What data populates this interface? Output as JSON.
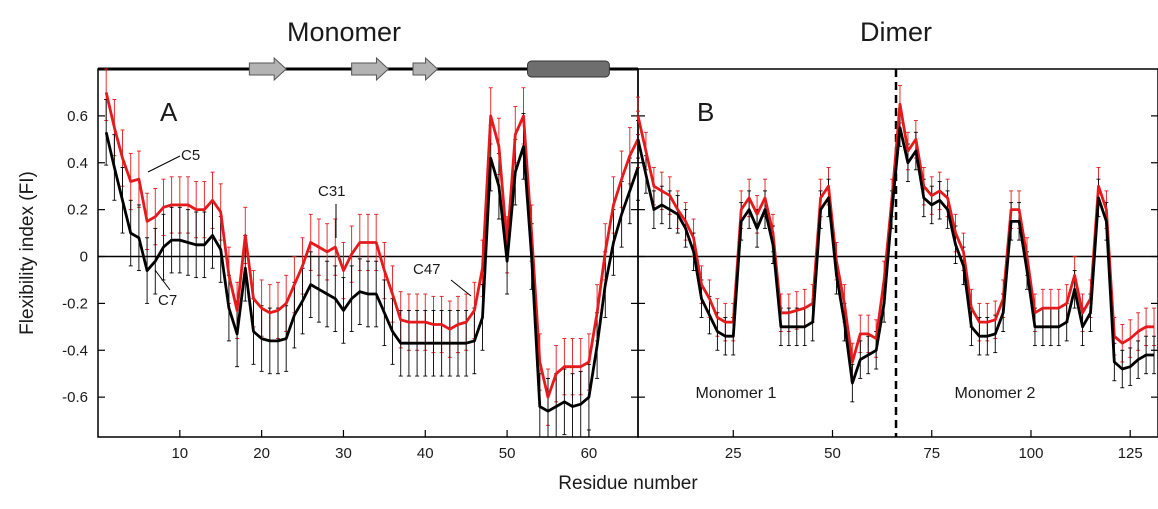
{
  "figure": {
    "ylabel": "Flexibility index (FI)",
    "xlabel": "Residue number"
  },
  "chart_data": [
    {
      "type": "line",
      "title": "Monomer",
      "panel_label": "A",
      "xlim": [
        0,
        66
      ],
      "ylim": [
        -0.77,
        0.8
      ],
      "x_ticks": [
        10,
        20,
        30,
        40,
        50,
        60
      ],
      "y_ticks": [
        {
          "value": 0.6,
          "label": "0.6"
        },
        {
          "value": 0.4,
          "label": "0.4"
        },
        {
          "value": 0.2,
          "label": "0.2"
        },
        {
          "value": 0.0,
          "label": "0"
        },
        {
          "value": -0.2,
          "label": "-0.2"
        },
        {
          "value": -0.4,
          "label": "-0.4"
        },
        {
          "value": -0.6,
          "label": "-0.6"
        }
      ],
      "zero_line": true,
      "secondary_structure": [
        {
          "kind": "strand",
          "start": 18.5,
          "end": 23
        },
        {
          "kind": "strand",
          "start": 31,
          "end": 35.5
        },
        {
          "kind": "strand",
          "start": 38.5,
          "end": 41.5
        },
        {
          "kind": "helix",
          "start": 52.5,
          "end": 62.5
        }
      ],
      "annotations": [
        {
          "text": "C5",
          "residue": 5
        },
        {
          "text": "C7",
          "residue": 7
        },
        {
          "text": "C31",
          "residue": 31
        },
        {
          "text": "C47",
          "residue": 47
        }
      ],
      "series": [
        {
          "color": "#e41a1c",
          "x": [
            1,
            2,
            3,
            4,
            5,
            6,
            7,
            8,
            9,
            10,
            11,
            12,
            13,
            14,
            15,
            16,
            17,
            18,
            19,
            20,
            21,
            22,
            23,
            24,
            25,
            26,
            27,
            28,
            29,
            30,
            31,
            32,
            33,
            34,
            35,
            36,
            37,
            38,
            39,
            40,
            41,
            42,
            43,
            44,
            45,
            46,
            47,
            48,
            49,
            50,
            51,
            52,
            53,
            54,
            55,
            56,
            57,
            58,
            59,
            60,
            61,
            62,
            63,
            64,
            65,
            66
          ],
          "y": [
            0.7,
            0.55,
            0.42,
            0.32,
            0.33,
            0.15,
            0.17,
            0.21,
            0.22,
            0.22,
            0.22,
            0.2,
            0.2,
            0.24,
            0.19,
            -0.08,
            -0.23,
            0.09,
            -0.18,
            -0.22,
            -0.24,
            -0.23,
            -0.2,
            -0.12,
            -0.04,
            0.06,
            0.04,
            0.02,
            0.04,
            -0.06,
            0.01,
            0.06,
            0.06,
            0.06,
            -0.06,
            -0.16,
            -0.27,
            -0.28,
            -0.28,
            -0.28,
            -0.29,
            -0.29,
            -0.31,
            -0.29,
            -0.28,
            -0.23,
            -0.05,
            0.6,
            0.47,
            0.05,
            0.52,
            0.6,
            0.1,
            -0.45,
            -0.6,
            -0.5,
            -0.47,
            -0.47,
            -0.47,
            -0.45,
            -0.24,
            0.02,
            0.22,
            0.33,
            0.43,
            0.5
          ],
          "error": 0.12
        },
        {
          "color": "#000000",
          "x": [
            1,
            2,
            3,
            4,
            5,
            6,
            7,
            8,
            9,
            10,
            11,
            12,
            13,
            14,
            15,
            16,
            17,
            18,
            19,
            20,
            21,
            22,
            23,
            24,
            25,
            26,
            27,
            28,
            29,
            30,
            31,
            32,
            33,
            34,
            35,
            36,
            37,
            38,
            39,
            40,
            41,
            42,
            43,
            44,
            45,
            46,
            47,
            48,
            49,
            50,
            51,
            52,
            53,
            54,
            55,
            56,
            57,
            58,
            59,
            60,
            61,
            62,
            63,
            64,
            65,
            66
          ],
          "y": [
            0.53,
            0.38,
            0.24,
            0.1,
            0.08,
            -0.06,
            -0.02,
            0.04,
            0.07,
            0.07,
            0.06,
            0.05,
            0.05,
            0.09,
            0.03,
            -0.22,
            -0.33,
            -0.05,
            -0.32,
            -0.35,
            -0.36,
            -0.36,
            -0.35,
            -0.25,
            -0.19,
            -0.12,
            -0.14,
            -0.16,
            -0.18,
            -0.23,
            -0.18,
            -0.15,
            -0.16,
            -0.16,
            -0.24,
            -0.32,
            -0.37,
            -0.37,
            -0.37,
            -0.37,
            -0.37,
            -0.37,
            -0.37,
            -0.37,
            -0.37,
            -0.36,
            -0.26,
            0.42,
            0.3,
            -0.02,
            0.36,
            0.47,
            0.0,
            -0.64,
            -0.66,
            -0.64,
            -0.62,
            -0.64,
            -0.63,
            -0.6,
            -0.38,
            -0.12,
            0.06,
            0.18,
            0.28,
            0.38
          ],
          "error": 0.14
        }
      ]
    },
    {
      "type": "line",
      "title": "Dimer",
      "panel_label": "B",
      "xlim": [
        1,
        132
      ],
      "ylim": [
        -0.77,
        0.8
      ],
      "x_ticks": [
        25,
        50,
        75,
        100,
        125
      ],
      "y_ticks": [
        0.6,
        0.4,
        0.2,
        0.0,
        -0.2,
        -0.4,
        -0.6
      ],
      "zero_line": true,
      "divider_residue": 66,
      "region_labels": [
        "Monomer 1",
        "Monomer 2"
      ],
      "series": [
        {
          "color": "#e41a1c",
          "x": [
            1,
            3,
            5,
            7,
            9,
            11,
            13,
            15,
            17,
            19,
            21,
            23,
            25,
            27,
            29,
            31,
            33,
            35,
            37,
            39,
            41,
            43,
            45,
            47,
            49,
            51,
            53,
            55,
            57,
            59,
            61,
            63,
            65,
            67,
            69,
            71,
            73,
            75,
            77,
            79,
            81,
            83,
            85,
            87,
            89,
            91,
            93,
            95,
            97,
            99,
            101,
            103,
            105,
            107,
            109,
            111,
            113,
            115,
            117,
            119,
            121,
            123,
            125,
            127,
            129,
            131
          ],
          "y": [
            0.6,
            0.45,
            0.3,
            0.28,
            0.26,
            0.2,
            0.15,
            0.08,
            -0.12,
            -0.18,
            -0.26,
            -0.28,
            -0.28,
            0.2,
            0.25,
            0.18,
            0.25,
            0.1,
            -0.24,
            -0.24,
            -0.23,
            -0.22,
            -0.2,
            0.25,
            0.3,
            -0.02,
            -0.2,
            -0.45,
            -0.33,
            -0.33,
            -0.35,
            -0.1,
            0.25,
            0.65,
            0.45,
            0.5,
            0.3,
            0.26,
            0.28,
            0.25,
            0.1,
            0.02,
            -0.22,
            -0.28,
            -0.28,
            -0.27,
            -0.18,
            0.2,
            0.2,
            0.0,
            -0.24,
            -0.22,
            -0.22,
            -0.22,
            -0.2,
            -0.08,
            -0.24,
            -0.18,
            0.3,
            0.2,
            -0.34,
            -0.37,
            -0.35,
            -0.32,
            -0.3,
            -0.3
          ],
          "error": 0.08
        },
        {
          "color": "#000000",
          "x": [
            1,
            3,
            5,
            7,
            9,
            11,
            13,
            15,
            17,
            19,
            21,
            23,
            25,
            27,
            29,
            31,
            33,
            35,
            37,
            39,
            41,
            43,
            45,
            47,
            49,
            51,
            53,
            55,
            57,
            59,
            61,
            63,
            65,
            67,
            69,
            71,
            73,
            75,
            77,
            79,
            81,
            83,
            85,
            87,
            89,
            91,
            93,
            95,
            97,
            99,
            101,
            103,
            105,
            107,
            109,
            111,
            113,
            115,
            117,
            119,
            121,
            123,
            125,
            127,
            129,
            131
          ],
          "y": [
            0.5,
            0.35,
            0.2,
            0.22,
            0.2,
            0.18,
            0.12,
            0.02,
            -0.18,
            -0.25,
            -0.32,
            -0.34,
            -0.34,
            0.15,
            0.2,
            0.12,
            0.2,
            0.05,
            -0.3,
            -0.3,
            -0.3,
            -0.3,
            -0.28,
            0.2,
            0.25,
            -0.08,
            -0.28,
            -0.54,
            -0.44,
            -0.42,
            -0.4,
            -0.2,
            0.2,
            0.55,
            0.4,
            0.45,
            0.25,
            0.22,
            0.24,
            0.2,
            0.05,
            -0.04,
            -0.3,
            -0.34,
            -0.34,
            -0.33,
            -0.24,
            0.15,
            0.15,
            -0.06,
            -0.3,
            -0.3,
            -0.3,
            -0.3,
            -0.28,
            -0.14,
            -0.3,
            -0.24,
            0.25,
            0.15,
            -0.45,
            -0.48,
            -0.47,
            -0.44,
            -0.42,
            -0.42
          ],
          "error": 0.08
        }
      ]
    }
  ]
}
